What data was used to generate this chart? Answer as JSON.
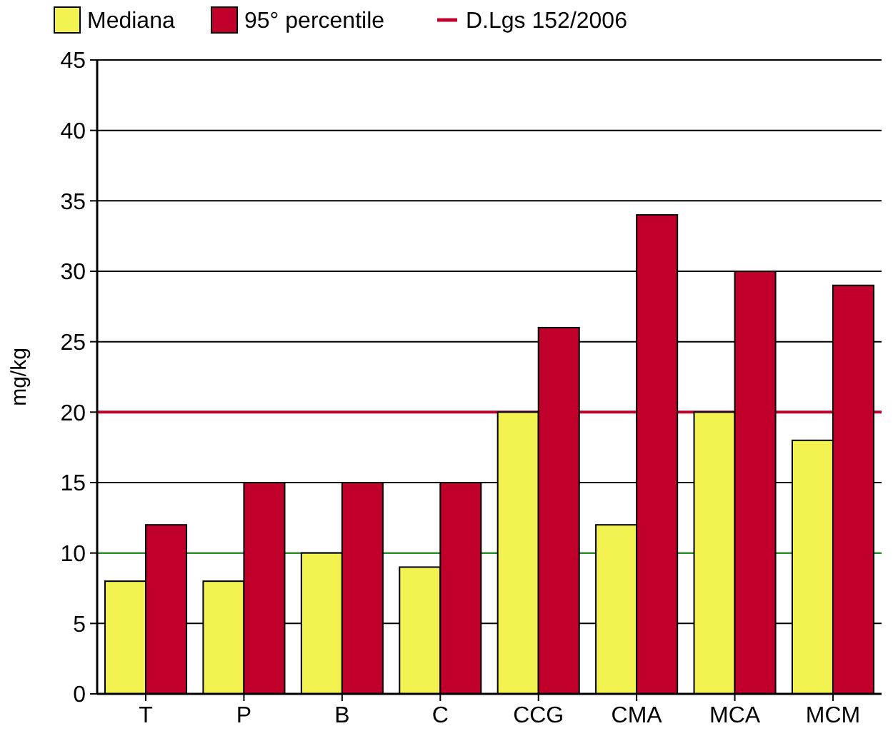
{
  "chart_data": {
    "type": "bar",
    "ylabel": "mg/kg",
    "categories": [
      "T",
      "P",
      "B",
      "C",
      "CCG",
      "CMA",
      "MCA",
      "MCM"
    ],
    "series": [
      {
        "name": "Mediana",
        "color": "#f2f250",
        "values": [
          8,
          8,
          10,
          9,
          20,
          12,
          20,
          18
        ]
      },
      {
        "name": "95° percentile",
        "color": "#c0002a",
        "values": [
          12,
          15,
          15,
          15,
          26,
          34,
          30,
          29
        ]
      }
    ],
    "ylim": [
      0,
      45
    ],
    "yticks": [
      0,
      5,
      10,
      15,
      20,
      25,
      30,
      35,
      40,
      45
    ],
    "grid": "y",
    "legend": "top",
    "ref_lines": [
      {
        "axis": "y",
        "value": 20,
        "label": "D.Lgs 152/2006",
        "color": "#c0002a"
      },
      {
        "axis": "y",
        "value": 10,
        "color": "#2ca02c"
      }
    ]
  }
}
